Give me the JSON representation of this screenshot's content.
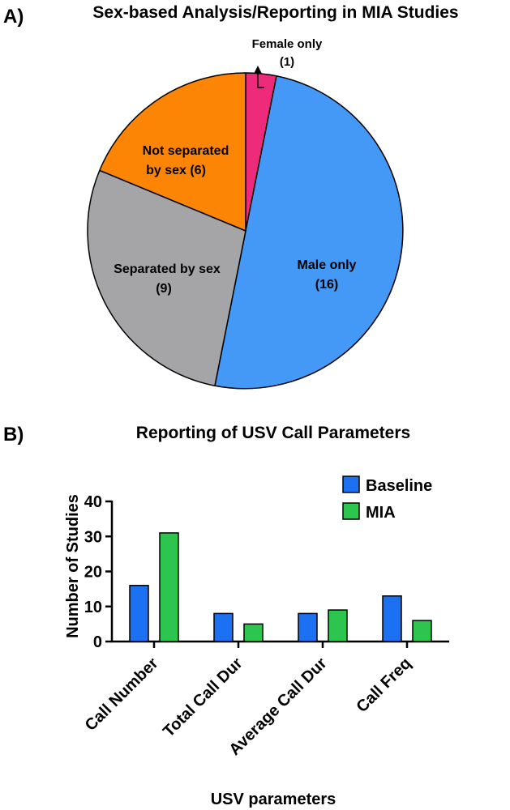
{
  "chart_data": [
    {
      "type": "pie",
      "panel_label": "A)",
      "title": "Sex-based Analysis/Reporting in MIA Studies",
      "slices": [
        {
          "name": "Female only",
          "value": 1,
          "color": "#ee2a7b"
        },
        {
          "name": "Male only",
          "value": 16,
          "color": "#4499f7"
        },
        {
          "name": "Separated by sex",
          "value": 9,
          "color": "#a5a5a7"
        },
        {
          "name": "Not separated by sex",
          "value": 6,
          "color": "#fd8506"
        }
      ],
      "labels": [
        {
          "line1": "Female only",
          "line2": "(1)"
        },
        {
          "line1": "Male only",
          "line2": "(16)"
        },
        {
          "line1": "Separated by sex",
          "line2": "(9)"
        },
        {
          "line1": "Not separated",
          "line2": "by sex (6)"
        }
      ]
    },
    {
      "type": "bar",
      "panel_label": "B)",
      "title": "Reporting of USV Call Parameters",
      "xlabel": "USV parameters",
      "ylabel": "Number of Studies",
      "ylim": [
        0,
        40
      ],
      "yticks": [
        "0",
        "10",
        "20",
        "30",
        "40"
      ],
      "categories": [
        "Call Number",
        "Total Call Dur",
        "Average Call Dur",
        "Call Freq"
      ],
      "series": [
        {
          "name": "Baseline",
          "color": "#1c71f2",
          "values": [
            16,
            8,
            8,
            13
          ]
        },
        {
          "name": "MIA",
          "color": "#2ec54e",
          "values": [
            31,
            5,
            9,
            6
          ]
        }
      ],
      "grid": false,
      "legend": "top-right"
    }
  ]
}
